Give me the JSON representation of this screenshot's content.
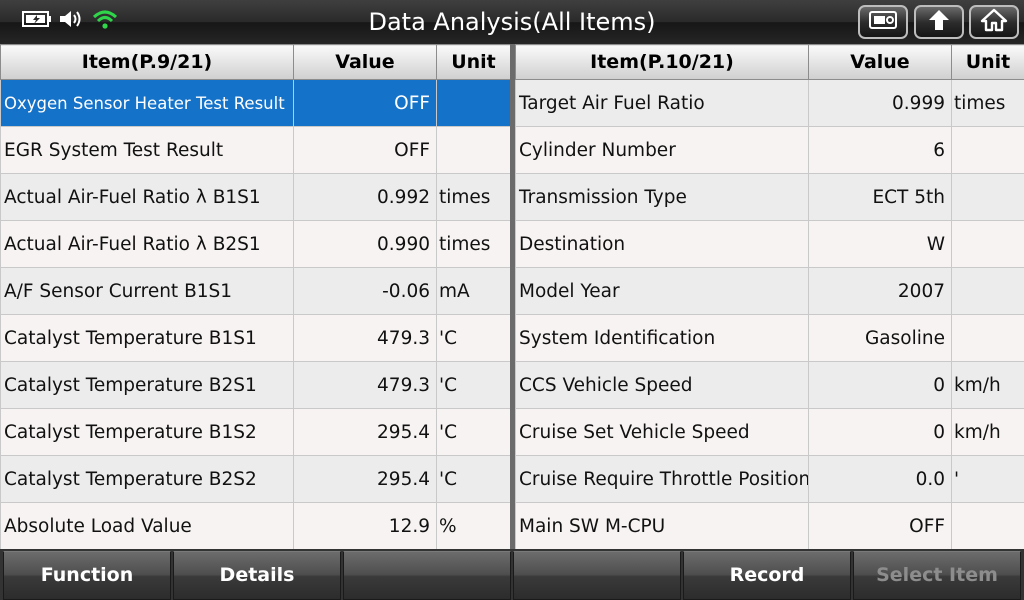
{
  "header": {
    "title": "Data Analysis(All Items)",
    "icons": [
      "battery-icon",
      "speaker-icon",
      "wifi-icon",
      "screenshot-icon",
      "back-icon",
      "home-icon"
    ]
  },
  "left_table": {
    "col_item": "Item(P.9/21)",
    "col_value": "Value",
    "col_unit": "Unit",
    "selected_row": 0,
    "rows": [
      {
        "name": "Oxygen Sensor Heater Test Result",
        "value": "OFF",
        "unit": ""
      },
      {
        "name": "EGR System Test Result",
        "value": "OFF",
        "unit": ""
      },
      {
        "name": "Actual Air-Fuel Ratio λ B1S1",
        "value": "0.992",
        "unit": "times"
      },
      {
        "name": "Actual Air-Fuel Ratio λ B2S1",
        "value": "0.990",
        "unit": "times"
      },
      {
        "name": "A/F Sensor Current B1S1",
        "value": "-0.06",
        "unit": "mA"
      },
      {
        "name": "Catalyst Temperature B1S1",
        "value": "479.3",
        "unit": "'C"
      },
      {
        "name": "Catalyst Temperature B2S1",
        "value": "479.3",
        "unit": "'C"
      },
      {
        "name": "Catalyst Temperature B1S2",
        "value": "295.4",
        "unit": "'C"
      },
      {
        "name": "Catalyst Temperature B2S2",
        "value": "295.4",
        "unit": "'C"
      },
      {
        "name": "Absolute Load Value",
        "value": "12.9",
        "unit": "%"
      }
    ]
  },
  "right_table": {
    "col_item": "Item(P.10/21)",
    "col_value": "Value",
    "col_unit": "Unit",
    "rows": [
      {
        "name": "Target Air Fuel Ratio",
        "value": "0.999",
        "unit": "times"
      },
      {
        "name": "Cylinder Number",
        "value": "6",
        "unit": ""
      },
      {
        "name": "Transmission Type",
        "value": "ECT 5th",
        "unit": ""
      },
      {
        "name": "Destination",
        "value": "W",
        "unit": ""
      },
      {
        "name": "Model Year",
        "value": "2007",
        "unit": ""
      },
      {
        "name": "System Identification",
        "value": "Gasoline",
        "unit": ""
      },
      {
        "name": "CCS Vehicle Speed",
        "value": "0",
        "unit": "km/h"
      },
      {
        "name": "Cruise Set Vehicle Speed",
        "value": "0",
        "unit": "km/h"
      },
      {
        "name": "Cruise Require Throttle Position",
        "value": "0.0",
        "unit": "'"
      },
      {
        "name": "Main SW M-CPU",
        "value": "OFF",
        "unit": ""
      }
    ]
  },
  "footer": {
    "function_label": "Function",
    "details_label": "Details",
    "empty1_label": "",
    "empty2_label": "",
    "record_label": "Record",
    "select_item_label": "Select Item"
  },
  "colors": {
    "selected_row": "#1572c9",
    "wifi_icon": "#2fd64a",
    "disabled_text": "#8d8d8d"
  }
}
